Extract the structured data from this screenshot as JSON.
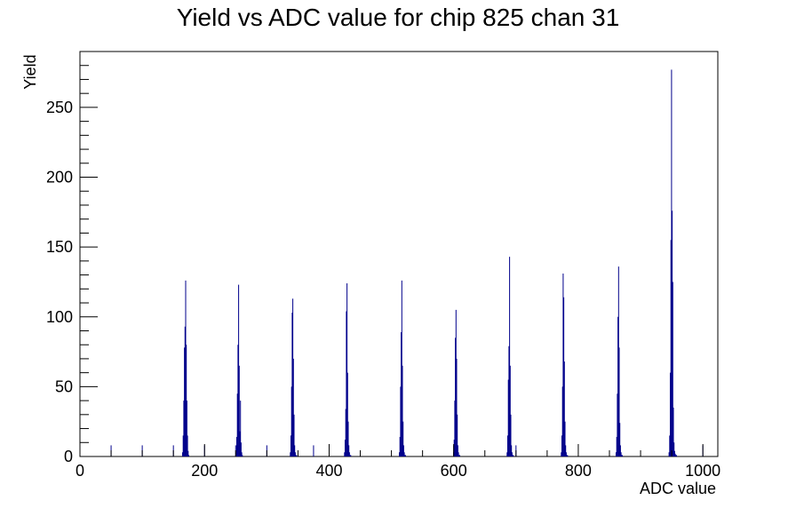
{
  "chart_data": {
    "type": "bar",
    "title": "Yield vs ADC value for chip 825 chan 31",
    "xlabel": "ADC value",
    "ylabel": "Yield",
    "xlim": [
      0,
      1024
    ],
    "ylim": [
      0,
      290
    ],
    "x_ticks": [
      0,
      200,
      400,
      600,
      800,
      1000
    ],
    "y_ticks": [
      0,
      50,
      100,
      150,
      200,
      250
    ],
    "grid": false,
    "legend": "none",
    "bin_width": 1,
    "line_color": "#00008b",
    "series": [
      {
        "x": [
          164,
          165,
          166,
          167,
          168,
          169,
          170,
          171,
          172,
          173,
          174,
          250,
          251,
          252,
          253,
          254,
          255,
          256,
          257,
          258,
          259,
          260,
          337,
          338,
          339,
          340,
          341,
          342,
          343,
          344,
          345,
          346,
          347,
          424,
          425,
          426,
          427,
          428,
          429,
          430,
          431,
          432,
          433,
          434,
          512,
          513,
          514,
          515,
          516,
          517,
          518,
          519,
          520,
          521,
          522,
          599,
          600,
          601,
          602,
          603,
          604,
          605,
          606,
          607,
          608,
          609,
          685,
          686,
          687,
          688,
          689,
          690,
          691,
          692,
          693,
          694,
          695,
          772,
          773,
          774,
          775,
          776,
          777,
          778,
          779,
          780,
          781,
          782,
          860,
          861,
          862,
          863,
          864,
          865,
          866,
          867,
          868,
          869,
          870,
          945,
          946,
          947,
          948,
          949,
          950,
          951,
          952,
          953,
          954,
          955,
          956,
          957
        ],
        "values": [
          3,
          15,
          40,
          78,
          93,
          126,
          80,
          40,
          15,
          4,
          1,
          3,
          14,
          45,
          80,
          123,
          65,
          18,
          40,
          10,
          3,
          1,
          3,
          15,
          50,
          103,
          113,
          70,
          30,
          8,
          3,
          1,
          1,
          3,
          12,
          34,
          104,
          124,
          60,
          25,
          8,
          3,
          1,
          1,
          3,
          14,
          50,
          89,
          126,
          65,
          25,
          8,
          3,
          1,
          1,
          3,
          12,
          40,
          85,
          105,
          70,
          30,
          8,
          3,
          1,
          1,
          3,
          15,
          55,
          79,
          143,
          65,
          30,
          8,
          3,
          1,
          1,
          3,
          15,
          50,
          131,
          114,
          68,
          25,
          8,
          3,
          1,
          1,
          3,
          14,
          45,
          100,
          136,
          78,
          24,
          8,
          3,
          1,
          1,
          3,
          15,
          60,
          155,
          277,
          176,
          125,
          35,
          10,
          4,
          2,
          1,
          1
        ]
      }
    ],
    "isolated_bins": [
      {
        "x": 50,
        "value": 8
      },
      {
        "x": 100,
        "value": 8
      },
      {
        "x": 150,
        "value": 8
      },
      {
        "x": 200,
        "value": 8
      },
      {
        "x": 250,
        "value": 8
      },
      {
        "x": 300,
        "value": 8
      },
      {
        "x": 375,
        "value": 8
      },
      {
        "x": 600,
        "value": 8
      },
      {
        "x": 700,
        "value": 8
      },
      {
        "x": 1000,
        "value": 8
      }
    ]
  }
}
